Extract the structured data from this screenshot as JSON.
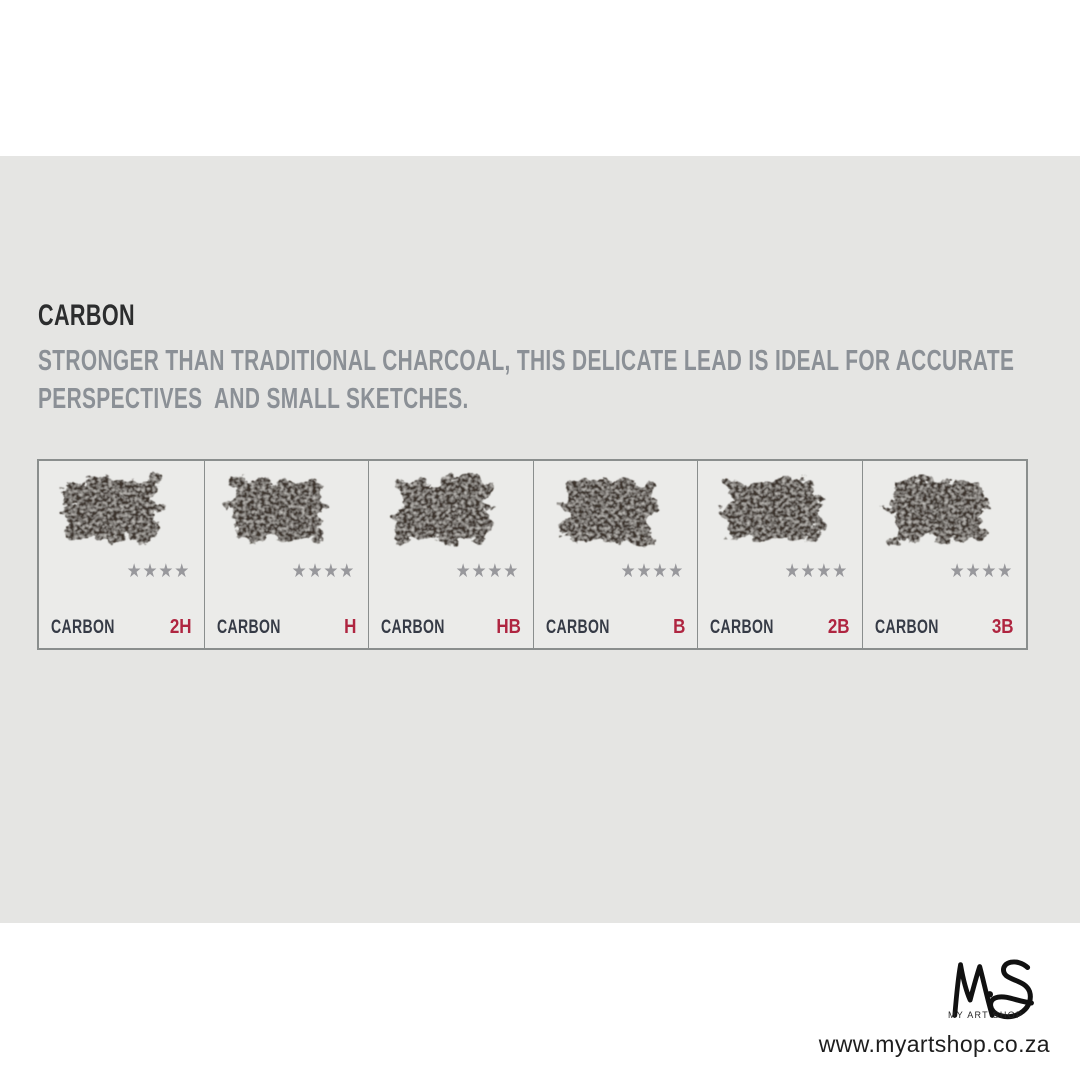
{
  "page": {
    "background": "#ffffff"
  },
  "panel": {
    "background": "#e5e5e3",
    "heading": "CARBON",
    "heading_color": "#2c2d2e",
    "description_color": "#8b9096",
    "description_lines": [
      "STRONGER THAN TRADITIONAL CHARCOAL, THIS DELICATE LEAD IS IDEAL FOR ACCURATE",
      "PERSPECTIVES  AND SMALL SKETCHES."
    ]
  },
  "swatch_table": {
    "border_color": "#8a8e8d",
    "cell_background": "#ebebe9",
    "star_color": "#98989c",
    "label_color": "#363b46",
    "grade_color": "#af2540",
    "swatch_color": "#3a332a",
    "cells": [
      {
        "label": "CARBON",
        "grade": "2H",
        "stars": "★★★★"
      },
      {
        "label": "CARBON",
        "grade": "H",
        "stars": "★★★★"
      },
      {
        "label": "CARBON",
        "grade": "HB",
        "stars": "★★★★"
      },
      {
        "label": "CARBON",
        "grade": "B",
        "stars": "★★★★"
      },
      {
        "label": "CARBON",
        "grade": "2B",
        "stars": "★★★★"
      },
      {
        "label": "CARBON",
        "grade": "3B",
        "stars": "★★★★"
      }
    ]
  },
  "footer": {
    "logo": "MAS",
    "logo_color": "#111111",
    "logo_subtext": "MY ART SHOP",
    "website": "www.myartshop.co.za"
  }
}
